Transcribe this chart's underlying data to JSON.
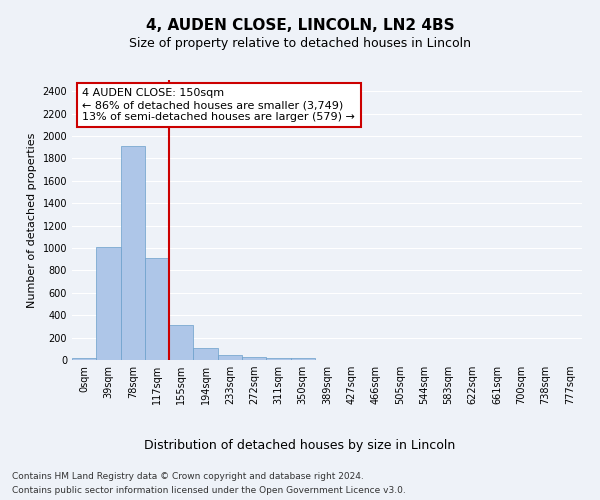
{
  "title": "4, AUDEN CLOSE, LINCOLN, LN2 4BS",
  "subtitle": "Size of property relative to detached houses in Lincoln",
  "xlabel": "Distribution of detached houses by size in Lincoln",
  "ylabel": "Number of detached properties",
  "footnote1": "Contains HM Land Registry data © Crown copyright and database right 2024.",
  "footnote2": "Contains public sector information licensed under the Open Government Licence v3.0.",
  "bar_labels": [
    "0sqm",
    "39sqm",
    "78sqm",
    "117sqm",
    "155sqm",
    "194sqm",
    "233sqm",
    "272sqm",
    "311sqm",
    "350sqm",
    "389sqm",
    "427sqm",
    "466sqm",
    "505sqm",
    "544sqm",
    "583sqm",
    "622sqm",
    "661sqm",
    "700sqm",
    "738sqm",
    "777sqm"
  ],
  "bar_values": [
    15,
    1010,
    1910,
    910,
    310,
    110,
    47,
    28,
    20,
    15,
    0,
    0,
    0,
    0,
    0,
    0,
    0,
    0,
    0,
    0,
    0
  ],
  "bar_color": "#aec6e8",
  "bar_edge_color": "#6a9fcb",
  "vline_pos": 3.5,
  "vline_color": "#cc0000",
  "annotation_text": "4 AUDEN CLOSE: 150sqm\n← 86% of detached houses are smaller (3,749)\n13% of semi-detached houses are larger (579) →",
  "annotation_box_color": "#ffffff",
  "annotation_box_edge": "#cc0000",
  "ylim": [
    0,
    2500
  ],
  "yticks": [
    0,
    200,
    400,
    600,
    800,
    1000,
    1200,
    1400,
    1600,
    1800,
    2000,
    2200,
    2400
  ],
  "background_color": "#eef2f8",
  "grid_color": "#ffffff",
  "title_fontsize": 11,
  "subtitle_fontsize": 9,
  "ylabel_fontsize": 8,
  "xlabel_fontsize": 9,
  "tick_fontsize": 7,
  "annotation_fontsize": 8,
  "footnote_fontsize": 6.5
}
